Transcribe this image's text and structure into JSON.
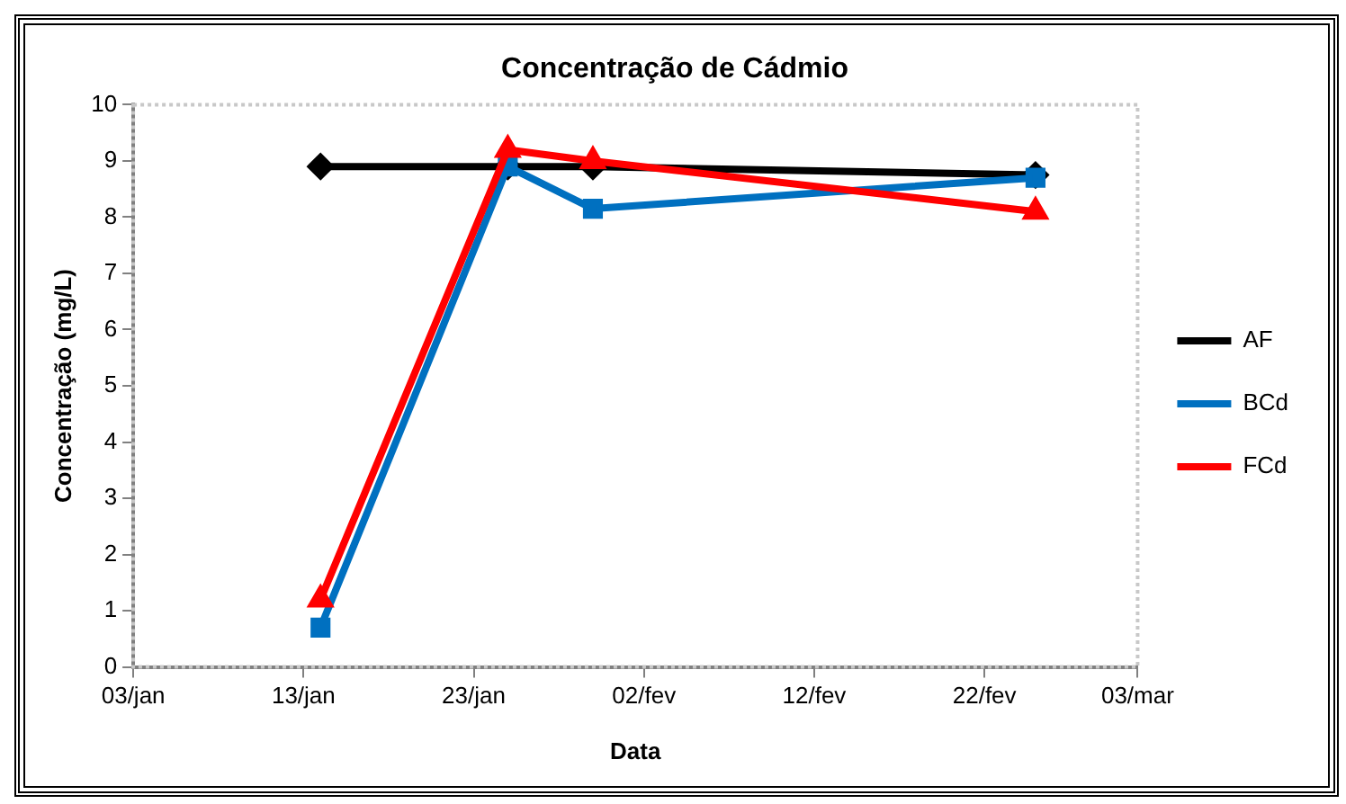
{
  "chart_data": {
    "type": "line",
    "title": "Concentração de Cádmio",
    "xlabel": "Data",
    "ylabel": "Concentração (mg/L)",
    "x": [
      "--01-14",
      "--01-25",
      "--01-30",
      "--02-25"
    ],
    "series": [
      {
        "name": "AF",
        "color": "#000000",
        "marker": "diamond",
        "values": [
          8.9,
          8.9,
          8.9,
          8.75
        ]
      },
      {
        "name": "BCd",
        "color": "#0070c0",
        "marker": "square",
        "values": [
          0.7,
          8.9,
          8.15,
          8.7
        ]
      },
      {
        "name": "FCd",
        "color": "#ff0000",
        "marker": "triangle",
        "values": [
          1.2,
          9.2,
          9.0,
          8.1
        ]
      }
    ],
    "xlim": [
      "--01-03",
      "--03-03"
    ],
    "xticks": [
      {
        "value": "--01-03",
        "label": "03/jan"
      },
      {
        "value": "--01-13",
        "label": "13/jan"
      },
      {
        "value": "--01-23",
        "label": "23/jan"
      },
      {
        "value": "--02-02",
        "label": "02/fev"
      },
      {
        "value": "--02-12",
        "label": "12/fev"
      },
      {
        "value": "--02-22",
        "label": "22/fev"
      },
      {
        "value": "--03-03",
        "label": "03/mar"
      }
    ],
    "ylim": [
      0,
      10
    ],
    "yticks": [
      0,
      1,
      2,
      3,
      4,
      5,
      6,
      7,
      8,
      9,
      10
    ],
    "grid": false,
    "legend": "right",
    "line_style": "solid"
  }
}
